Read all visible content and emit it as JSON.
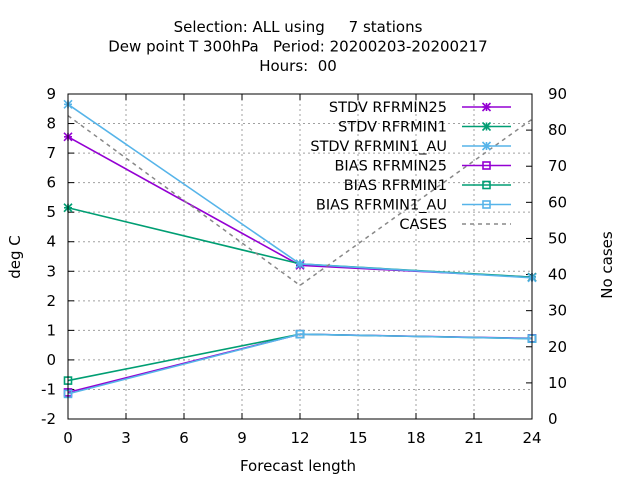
{
  "chart_data": {
    "type": "line",
    "title_lines": [
      "Selection: ALL using     7 stations",
      "Dew point T 300hPa   Period: 20200203-20200217",
      "Hours:  00"
    ],
    "xlabel": "Forecast length",
    "ylabel": "deg C",
    "y2label": "No cases",
    "xlim": [
      0,
      24
    ],
    "ylim": [
      -2,
      9
    ],
    "y2lim": [
      0,
      90
    ],
    "xticks": [
      0,
      3,
      6,
      9,
      12,
      15,
      18,
      21,
      24
    ],
    "yticks": [
      -2,
      -1,
      0,
      1,
      2,
      3,
      4,
      5,
      6,
      7,
      8,
      9
    ],
    "y2ticks": [
      0,
      10,
      20,
      30,
      40,
      50,
      60,
      70,
      80,
      90
    ],
    "grid": true,
    "legend_position": "top-right",
    "x": [
      0,
      12,
      24
    ],
    "series": [
      {
        "name": "STDV RFRMIN25",
        "axis": "y1",
        "marker": "star",
        "color": "#9400d3",
        "values": [
          7.55,
          3.2,
          2.8
        ]
      },
      {
        "name": "STDV RFRMIN1",
        "axis": "y1",
        "marker": "star",
        "color": "#009e73",
        "values": [
          5.15,
          3.25,
          2.8
        ]
      },
      {
        "name": "STDV RFRMIN1_AU",
        "axis": "y1",
        "marker": "star",
        "color": "#56b4e9",
        "values": [
          8.65,
          3.25,
          2.78
        ]
      },
      {
        "name": "BIAS RFRMIN25",
        "axis": "y1",
        "marker": "square",
        "color": "#9400d3",
        "values": [
          -1.1,
          0.87,
          0.73
        ]
      },
      {
        "name": "BIAS RFRMIN1",
        "axis": "y1",
        "marker": "square",
        "color": "#009e73",
        "values": [
          -0.7,
          0.87,
          0.72
        ]
      },
      {
        "name": "BIAS RFRMIN1_AU",
        "axis": "y1",
        "marker": "square",
        "color": "#56b4e9",
        "values": [
          -1.15,
          0.87,
          0.72
        ]
      },
      {
        "name": "CASES",
        "axis": "y2",
        "marker": "none",
        "color": "#888888",
        "dashed": true,
        "values": [
          84,
          37,
          83
        ]
      }
    ]
  }
}
